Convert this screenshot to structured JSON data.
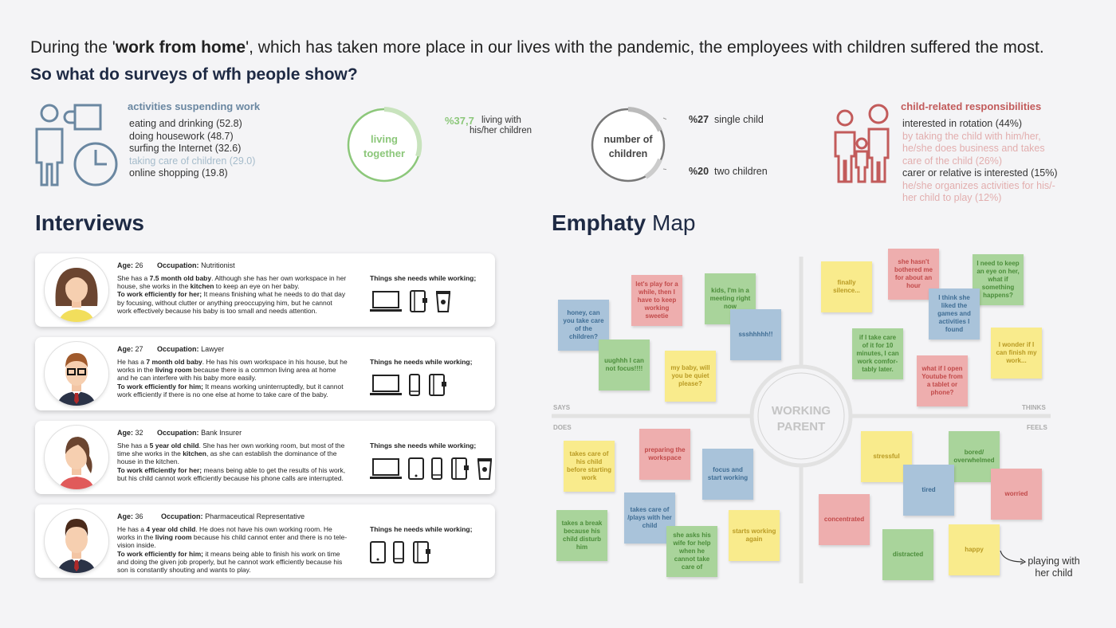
{
  "intro": {
    "pre": "During the '",
    "bold": "work from home",
    "post": "', which has taken more place in our lives with the pandemic, the employees with children suffered the most.",
    "question": "So what do surveys of wfh people show?"
  },
  "activities": {
    "title": "activities suspending work",
    "items": [
      "eating and drinking (52.8)",
      "doing housework (48.7)",
      "surfing the Internet (32.6)",
      "taking care of children (29.0)",
      "online shopping (19.8)"
    ]
  },
  "living": {
    "label_line1": "living",
    "label_line2": "together",
    "percent": "%37,7",
    "text_line1": "living with",
    "text_line2": "his/her children",
    "fraction": 0.377
  },
  "children": {
    "label_line1": "number of",
    "label_line2": "children",
    "single_pct": "%27",
    "single_text": "single child",
    "two_pct": "%20",
    "two_text": "two children"
  },
  "responsibilities": {
    "title": "child-related responsibilities",
    "items": [
      "interested in rotation (44%)",
      "by taking the child with him/her,",
      "he/she does business and takes",
      "care of the child (26%)",
      "carer or relative is interested (15%)",
      "he/she organizes activities for his/-",
      "her child to play (12%)"
    ]
  },
  "interviews": {
    "title": "Interviews",
    "age_label": "Age:",
    "occupation_label": "Occupation:",
    "cards": [
      {
        "age": "26",
        "occupation": "Nutritionist",
        "l1a": "She has a ",
        "l1b": "7.5 month old baby",
        "l1c": ". Although she has her own workspace in her",
        "l2a": "house, she works in the ",
        "l2b": "kitchen",
        "l2c": " to keep an eye on her baby.",
        "l3a": "To work efficiently for her;",
        "l3c": " It means finishing what he needs to do that day",
        "l4": "by focusing, without clutter or anything preoccupying him, but he cannot",
        "l5": "work effectively because his baby is too small and needs attention.",
        "needs": "Things she needs while working;"
      },
      {
        "age": "27",
        "occupation": "Lawyer",
        "l1a": "He has a ",
        "l1b": "7 month old baby",
        "l1c": ". He has his own workspace in his house, but he",
        "l2a": "works in the ",
        "l2b": "living room",
        "l2c": " because there is a common living area at home",
        "l3a": "",
        "l3c": "and he can interfere with his baby more easily.",
        "l4a": "To work efficiently for him;",
        "l4c": " It means working uninterruptedly, but it cannot",
        "l5": "work efficiently if there is no one else at home to take care of the baby.",
        "needs": "Things he needs while working;"
      },
      {
        "age": "32",
        "occupation": "Bank Insurer",
        "l1a": "She has a ",
        "l1b": "5 year old child",
        "l1c": ". She has her own working room, but most of the",
        "l2a": "time she works in the ",
        "l2b": "kitchen",
        "l2c": ", as she can establish the dominance of the",
        "l3a": "",
        "l3c": "house in the kitchen.",
        "l4a": "To work efficiently for her;",
        "l4c": " means being able to get the results of his work,",
        "l5": "but his child cannot work efficiently because his phone calls are interrupted.",
        "needs": "Things she needs while working;"
      },
      {
        "age": "36",
        "occupation": "Pharmaceutical Representative",
        "l1a": "He has a ",
        "l1b": "4 year old child",
        "l1c": ". He does not have his own working room. He",
        "l2a": "works in the ",
        "l2b": "living room",
        "l2c": " because his child cannot enter and there is no tele-",
        "l3a": "",
        "l3c": "vision inside.",
        "l4a": "To work efficiently for him;",
        "l4c": " it means being able to finish his work on time",
        "l5": "and doing the given job properly, but he cannot work efficiently because his",
        "l6": "son is constantly shouting and wants to play.",
        "needs": "Things he needs while working;"
      }
    ]
  },
  "empathy": {
    "title_bold": "Emphaty",
    "title_light": " Map",
    "center_line1": "WORKING",
    "center_line2": "PARENT",
    "says": "SAYS",
    "thinks": "THINKS",
    "does": "DOES",
    "feels": "FEELS",
    "arrow_text_line1": "playing with",
    "arrow_text_line2": "her child",
    "notes": [
      "honey, can you take care of the children?",
      "let's play for a while, then I have to keep working sweetie",
      "kids, I'm in a meeting right now",
      "ssshhhhh!!",
      "uughhh I can not focus!!!!",
      "my baby, will you be quiet please?",
      "finally silence...",
      "she hasn't bothered me for about an hour",
      "I need to keep an eye on her, what if something happens?",
      "I think she liked the games and activities I found",
      "if I take care of it for 10 minutes, I can work comfor-tably later.",
      "I wonder if I can finish my work...",
      "what if I open Youtube from a tablet or phone?",
      "takes care of his child before starting work",
      "preparing the workspace",
      "focus and start working",
      "takes care of /plays with her child",
      "takes a break because his child disturb him",
      "she asks his wife for help when he cannot take care of",
      "starts working again",
      "stressful",
      "bored/ overwhelmed",
      "tired",
      "worried",
      "concentrated",
      "distracted",
      "happy"
    ]
  },
  "colors": {
    "navy": "#1e2a44",
    "blue": "#6a87a1",
    "green": "#8cc77a",
    "red": "#c25b5b",
    "gray": "#888888"
  }
}
